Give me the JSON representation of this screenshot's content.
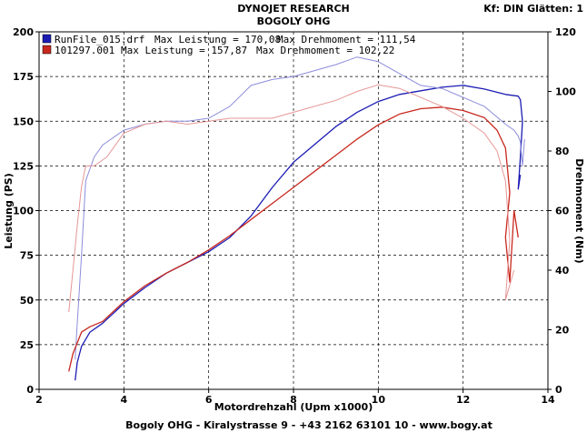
{
  "header": {
    "title": "DYNOJET RESEARCH",
    "subtitle": "BOGOLY OHG",
    "top_right": "Kf: DIN  Glätten: 1"
  },
  "footer": "Bogoly OHG - Kiralystrasse 9 - +43 2162 63101 10 - www.bogy.at",
  "colors": {
    "blue": "#1c1cb4",
    "red": "#c8281e",
    "blue_light": "#8c8cdc",
    "red_light": "#e69696",
    "grid": "#000000"
  },
  "chart_data": {
    "type": "line",
    "xlabel": "Motordrehzahl (Upm x1000)",
    "ylabel": "Leistung (PS)",
    "y2label": "Drehmoment (Nm)",
    "xlim": [
      2,
      14
    ],
    "ylim": [
      0,
      200
    ],
    "y2lim": [
      0,
      120
    ],
    "x_ticks": [
      "2",
      "4",
      "6",
      "8",
      "10",
      "12",
      "14"
    ],
    "y_ticks": [
      "0",
      "25",
      "50",
      "75",
      "100",
      "125",
      "150",
      "175",
      "200"
    ],
    "y2_ticks": [
      "0",
      "20",
      "40",
      "60",
      "80",
      "100",
      "120"
    ],
    "legend": [
      {
        "file": "RunFile_015.drf",
        "power_label": "Max Leistung = 170,08",
        "torque_label": "Max Drehmoment = 111,54",
        "color": "#1c1cb4"
      },
      {
        "file": "101297.001",
        "power_label": "Max Leistung = 157,87",
        "torque_label": "Max Drehmoment = 102,22",
        "color": "#c8281e"
      }
    ],
    "series": [
      {
        "name": "RunFile_015.drf Leistung",
        "axis": "left",
        "color": "#1c1cb4",
        "points": [
          [
            2.85,
            5
          ],
          [
            2.9,
            15
          ],
          [
            3.0,
            24
          ],
          [
            3.2,
            32
          ],
          [
            3.5,
            37
          ],
          [
            4.0,
            48
          ],
          [
            4.5,
            57
          ],
          [
            5.0,
            65
          ],
          [
            5.5,
            71
          ],
          [
            6.0,
            77
          ],
          [
            6.5,
            85
          ],
          [
            7.0,
            97
          ],
          [
            7.5,
            113
          ],
          [
            8.0,
            127
          ],
          [
            8.5,
            137
          ],
          [
            9.0,
            147
          ],
          [
            9.5,
            155
          ],
          [
            10.0,
            161
          ],
          [
            10.5,
            165
          ],
          [
            11.0,
            167
          ],
          [
            11.5,
            169
          ],
          [
            12.0,
            170.08
          ],
          [
            12.5,
            168
          ],
          [
            13.0,
            165
          ],
          [
            13.3,
            164
          ],
          [
            13.35,
            162
          ],
          [
            13.4,
            150
          ],
          [
            13.35,
            130
          ],
          [
            13.3,
            112
          ],
          [
            13.35,
            120
          ]
        ]
      },
      {
        "name": "RunFile_015.drf Drehmoment",
        "axis": "right",
        "color": "#8c8cdc",
        "points": [
          [
            2.85,
            10
          ],
          [
            2.9,
            22
          ],
          [
            3.0,
            45
          ],
          [
            3.1,
            70
          ],
          [
            3.3,
            78
          ],
          [
            3.5,
            82
          ],
          [
            4.0,
            87
          ],
          [
            4.5,
            89
          ],
          [
            5.0,
            90
          ],
          [
            5.5,
            90
          ],
          [
            6.0,
            91
          ],
          [
            6.5,
            95
          ],
          [
            7.0,
            102
          ],
          [
            7.5,
            104
          ],
          [
            8.0,
            105
          ],
          [
            8.5,
            107
          ],
          [
            9.0,
            109
          ],
          [
            9.5,
            111.54
          ],
          [
            10.0,
            110
          ],
          [
            10.5,
            106
          ],
          [
            11.0,
            102
          ],
          [
            11.5,
            101
          ],
          [
            12.0,
            98
          ],
          [
            12.5,
            95
          ],
          [
            13.0,
            89
          ],
          [
            13.2,
            87
          ],
          [
            13.3,
            85
          ],
          [
            13.35,
            83
          ],
          [
            13.4,
            75
          ],
          [
            13.45,
            84
          ]
        ]
      },
      {
        "name": "101297.001 Leistung",
        "axis": "left",
        "color": "#c8281e",
        "points": [
          [
            2.7,
            10
          ],
          [
            2.8,
            20
          ],
          [
            3.0,
            32
          ],
          [
            3.2,
            35
          ],
          [
            3.5,
            38
          ],
          [
            4.0,
            49
          ],
          [
            4.5,
            58
          ],
          [
            5.0,
            65
          ],
          [
            5.5,
            71
          ],
          [
            6.0,
            78
          ],
          [
            6.5,
            86
          ],
          [
            7.0,
            95
          ],
          [
            7.5,
            104
          ],
          [
            8.0,
            113
          ],
          [
            8.5,
            122
          ],
          [
            9.0,
            131
          ],
          [
            9.5,
            140
          ],
          [
            10.0,
            148
          ],
          [
            10.5,
            154
          ],
          [
            11.0,
            157
          ],
          [
            11.5,
            157.87
          ],
          [
            12.0,
            156
          ],
          [
            12.5,
            152
          ],
          [
            12.8,
            145
          ],
          [
            13.0,
            135
          ],
          [
            13.1,
            110
          ],
          [
            13.0,
            85
          ],
          [
            13.1,
            60
          ],
          [
            13.2,
            100
          ],
          [
            13.3,
            85
          ]
        ]
      },
      {
        "name": "101297.001 Drehmoment",
        "axis": "right",
        "color": "#e69696",
        "points": [
          [
            2.7,
            26
          ],
          [
            2.8,
            40
          ],
          [
            2.9,
            55
          ],
          [
            3.0,
            68
          ],
          [
            3.1,
            75
          ],
          [
            3.3,
            75
          ],
          [
            3.6,
            78
          ],
          [
            4.0,
            86
          ],
          [
            4.5,
            89
          ],
          [
            5.0,
            90
          ],
          [
            5.5,
            89
          ],
          [
            6.0,
            90
          ],
          [
            6.5,
            91
          ],
          [
            7.0,
            91
          ],
          [
            7.5,
            91
          ],
          [
            8.0,
            93
          ],
          [
            8.5,
            95
          ],
          [
            9.0,
            97
          ],
          [
            9.5,
            100
          ],
          [
            10.0,
            102.22
          ],
          [
            10.5,
            101
          ],
          [
            11.0,
            98
          ],
          [
            11.5,
            95
          ],
          [
            12.0,
            91
          ],
          [
            12.5,
            86
          ],
          [
            12.8,
            80
          ],
          [
            13.0,
            70
          ],
          [
            13.1,
            50
          ],
          [
            13.0,
            30
          ],
          [
            13.2,
            40
          ]
        ]
      }
    ]
  }
}
